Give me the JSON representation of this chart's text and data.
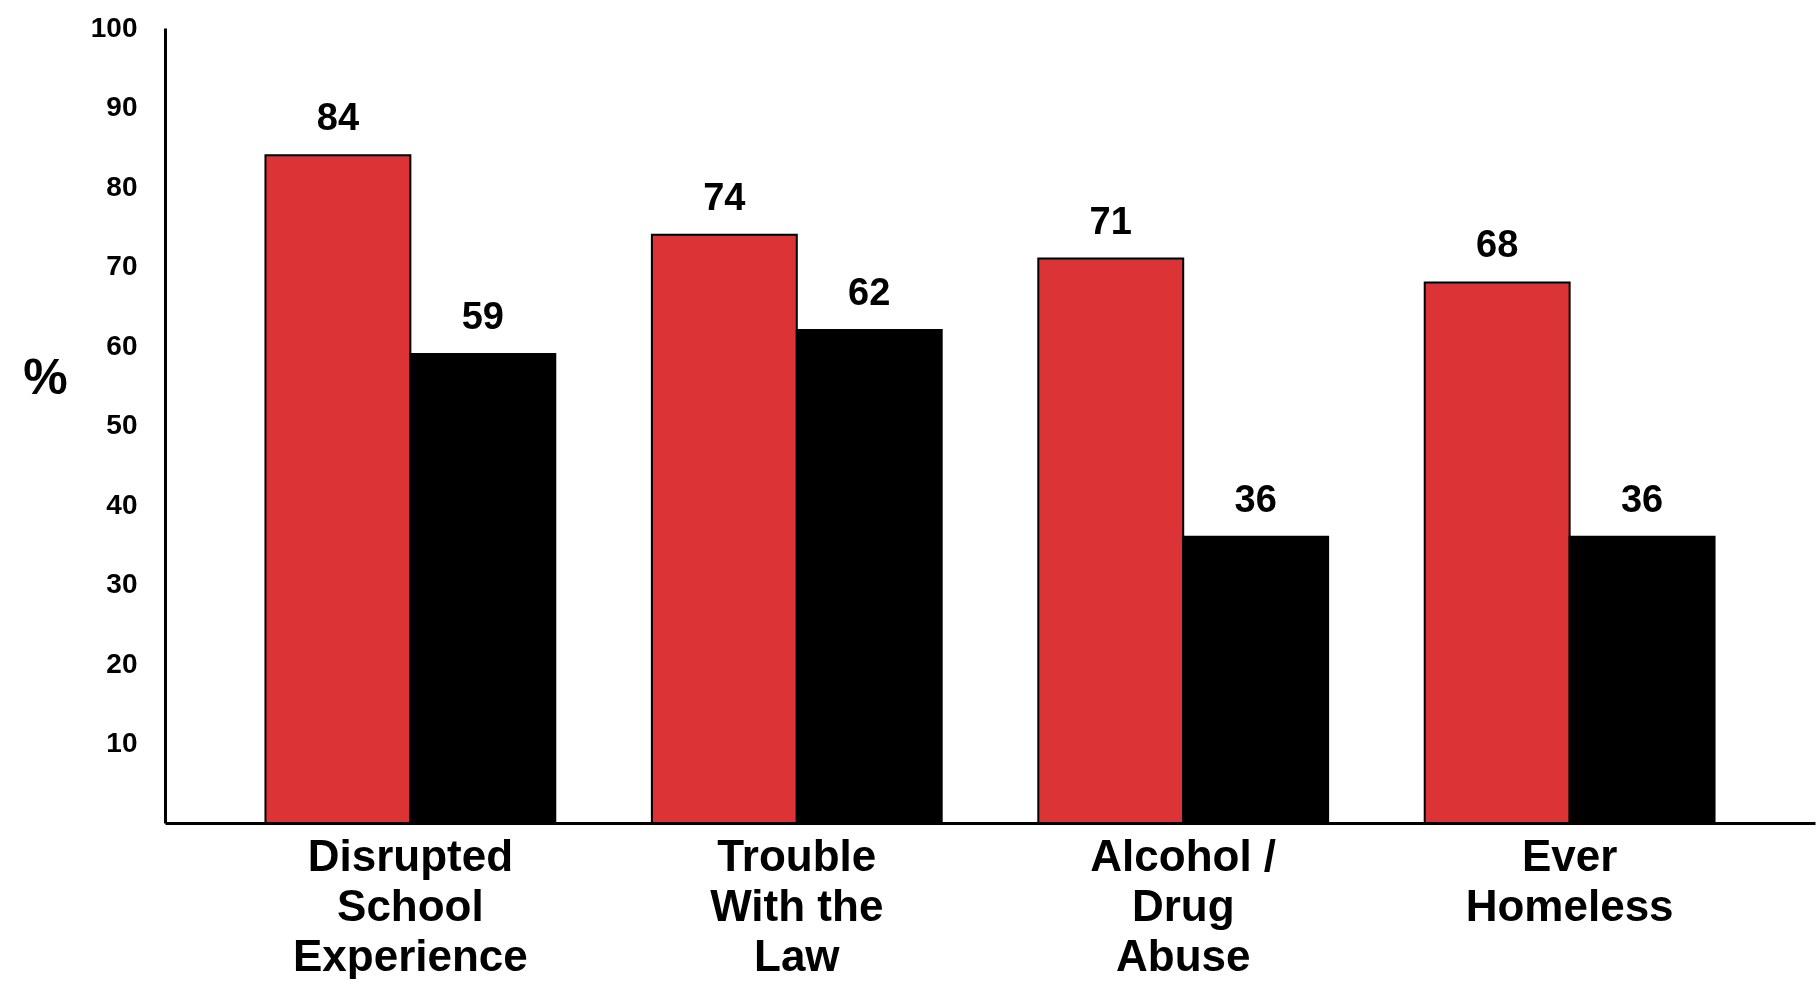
{
  "chart_data": {
    "type": "bar",
    "ylabel": "%",
    "categories": [
      "Disrupted School Experience",
      "Trouble With the Law",
      "Alcohol / Drug Abuse",
      "Ever Homeless"
    ],
    "series": [
      {
        "color": "#dc3336",
        "values": [
          84,
          74,
          71,
          68
        ]
      },
      {
        "color": "#000000",
        "values": [
          59,
          62,
          36,
          36
        ]
      }
    ],
    "ylim": [
      0,
      100
    ],
    "yticks": [
      10,
      20,
      30,
      40,
      50,
      60,
      70,
      80,
      90,
      100
    ],
    "data_labels": true,
    "grid": false,
    "legend": false
  }
}
